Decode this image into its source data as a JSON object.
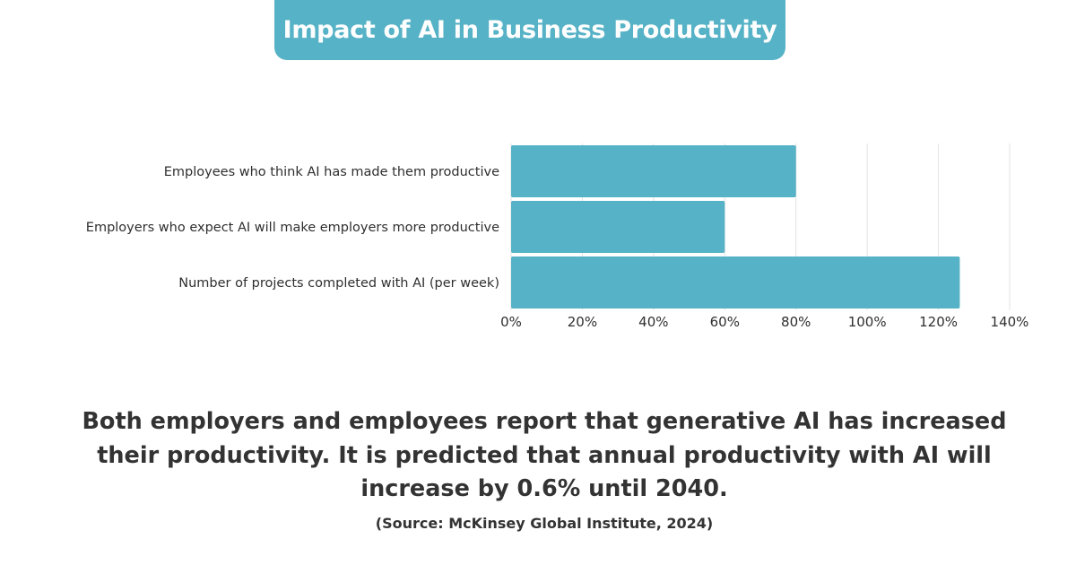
{
  "header": {
    "title": "Impact of AI in Business Productivity"
  },
  "chart_data": {
    "type": "bar",
    "orientation": "horizontal",
    "categories": [
      "Employees who think AI has made them productive",
      "Employers who expect AI will make employers more productive",
      "Number of projects completed with AI (per week)"
    ],
    "values": [
      80,
      60,
      126
    ],
    "value_unit": "%",
    "xlim": [
      0,
      140
    ],
    "x_ticks": [
      "0%",
      "20%",
      "40%",
      "60%",
      "80%",
      "100%",
      "120%",
      "140%"
    ],
    "grid": true,
    "bar_color": "#56b2c6",
    "title": "",
    "xlabel": "",
    "ylabel": ""
  },
  "caption": "Both employers and employees report that generative AI has increased their productivity. It is predicted that annual productivity with AI will increase by 0.6% until 2040.",
  "source": "(Source: McKinsey Global Institute, 2024)",
  "colors": {
    "accent": "#56b2c6",
    "text": "#333333",
    "grid": "#e3e3e3"
  }
}
